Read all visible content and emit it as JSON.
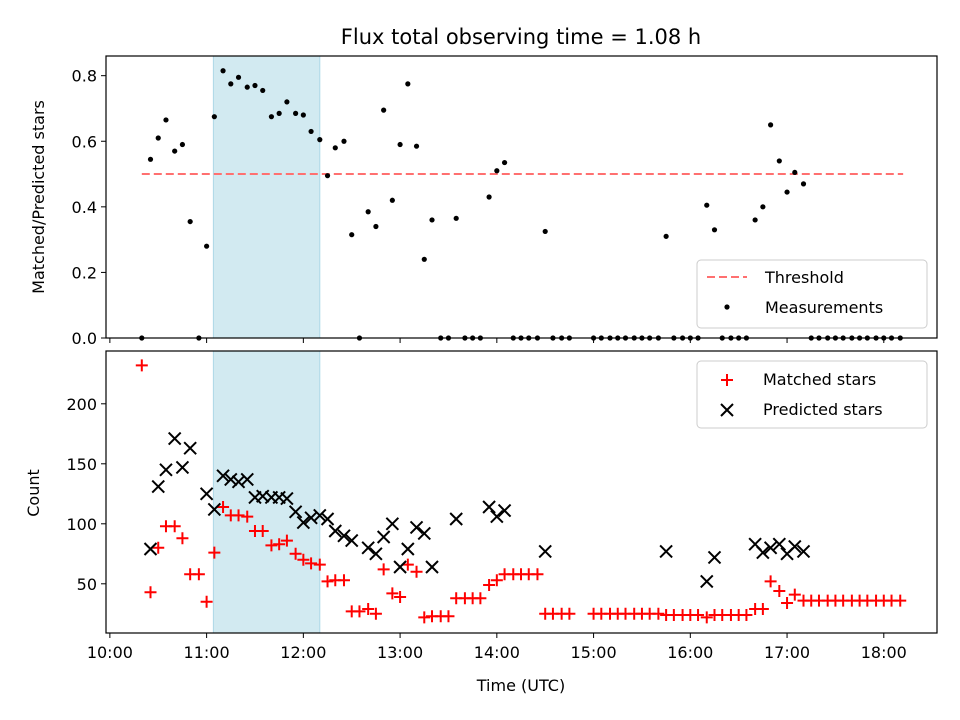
{
  "chart_data": {
    "type": "scatter",
    "title": "Flux total observing time = 1.08 h",
    "xlabel": "Time (UTC)",
    "xticks": [
      "10:00",
      "11:00",
      "12:00",
      "13:00",
      "14:00",
      "15:00",
      "16:00",
      "17:00",
      "18:00"
    ],
    "x_range_hours": [
      9.96,
      18.55
    ],
    "highlight_span_hours": [
      11.07,
      12.17
    ],
    "highlight_color": "#add8e6",
    "panels": [
      {
        "id": "ratio",
        "ylabel": "Matched/Predicted stars",
        "ylim": [
          0,
          0.86
        ],
        "yticks": [
          "0.0",
          "0.2",
          "0.4",
          "0.6",
          "0.8"
        ],
        "legend_position": "lower-right",
        "threshold": {
          "name": "Threshold",
          "value": 0.5,
          "x": [
            10.33,
            18.2
          ],
          "color": "#ff7070",
          "style": "dashed"
        },
        "series": [
          {
            "name": "Measurements",
            "color": "#000000",
            "marker": "dot",
            "x": [
              10.33,
              10.42,
              10.5,
              10.58,
              10.67,
              10.75,
              10.83,
              10.92,
              11.0,
              11.08,
              11.17,
              11.25,
              11.33,
              11.42,
              11.5,
              11.58,
              11.67,
              11.75,
              11.83,
              11.92,
              12.0,
              12.08,
              12.17,
              12.25,
              12.33,
              12.42,
              12.5,
              12.58,
              12.67,
              12.75,
              12.83,
              12.92,
              13.0,
              13.08,
              13.17,
              13.25,
              13.33,
              13.42,
              13.5,
              13.58,
              13.67,
              13.75,
              13.83,
              13.92,
              14.0,
              14.08,
              14.17,
              14.25,
              14.33,
              14.42,
              14.5,
              14.58,
              14.67,
              14.75,
              15.0,
              15.08,
              15.17,
              15.25,
              15.33,
              15.42,
              15.5,
              15.58,
              15.67,
              15.75,
              15.83,
              15.92,
              16.0,
              16.08,
              16.17,
              16.25,
              16.33,
              16.42,
              16.5,
              16.58,
              16.67,
              16.75,
              16.83,
              16.92,
              17.0,
              17.08,
              17.17,
              17.25,
              17.33,
              17.42,
              17.5,
              17.58,
              17.67,
              17.75,
              17.83,
              17.92,
              18.0,
              18.08,
              18.17
            ],
            "y": [
              0.0,
              0.545,
              0.61,
              0.665,
              0.57,
              0.59,
              0.355,
              0.0,
              0.28,
              0.675,
              0.815,
              0.775,
              0.795,
              0.765,
              0.77,
              0.755,
              0.675,
              0.685,
              0.72,
              0.685,
              0.68,
              0.63,
              0.605,
              0.495,
              0.58,
              0.6,
              0.315,
              0.0,
              0.385,
              0.34,
              0.695,
              0.42,
              0.59,
              0.775,
              0.585,
              0.24,
              0.36,
              0.0,
              0.0,
              0.365,
              0.0,
              0.0,
              0.0,
              0.43,
              0.51,
              0.535,
              0.0,
              0.0,
              0.0,
              0.0,
              0.325,
              0.0,
              0.0,
              0.0,
              0.0,
              0.0,
              0.0,
              0.0,
              0.0,
              0.0,
              0.0,
              0.0,
              0.0,
              0.31,
              0.0,
              0.0,
              0.0,
              0.0,
              0.405,
              0.33,
              0.0,
              0.0,
              0.0,
              0.0,
              0.36,
              0.4,
              0.65,
              0.54,
              0.445,
              0.505,
              0.47,
              0.0,
              0.0,
              0.0,
              0.0,
              0.0,
              0.0,
              0.0,
              0.0,
              0.0,
              0.0,
              0.0,
              0.0
            ]
          }
        ]
      },
      {
        "id": "counts",
        "ylabel": "Count",
        "ylim": [
          9,
          244
        ],
        "yticks": [
          "50",
          "100",
          "150",
          "200"
        ],
        "legend_position": "upper-right",
        "series": [
          {
            "name": "Matched stars",
            "color": "#ff0000",
            "marker": "plus",
            "x": [
              10.33,
              10.42,
              10.5,
              10.58,
              10.67,
              10.75,
              10.83,
              10.92,
              11.0,
              11.08,
              11.17,
              11.25,
              11.33,
              11.42,
              11.5,
              11.58,
              11.67,
              11.75,
              11.83,
              11.92,
              12.0,
              12.08,
              12.17,
              12.25,
              12.33,
              12.42,
              12.5,
              12.58,
              12.67,
              12.75,
              12.83,
              12.92,
              13.0,
              13.08,
              13.17,
              13.25,
              13.33,
              13.42,
              13.5,
              13.58,
              13.67,
              13.75,
              13.83,
              13.92,
              14.0,
              14.08,
              14.17,
              14.25,
              14.33,
              14.42,
              14.5,
              14.58,
              14.67,
              14.75,
              15.0,
              15.08,
              15.17,
              15.25,
              15.33,
              15.42,
              15.5,
              15.58,
              15.67,
              15.75,
              15.83,
              15.92,
              16.0,
              16.08,
              16.17,
              16.25,
              16.33,
              16.42,
              16.5,
              16.58,
              16.67,
              16.75,
              16.83,
              16.92,
              17.0,
              17.08,
              17.17,
              17.25,
              17.33,
              17.42,
              17.5,
              17.58,
              17.67,
              17.75,
              17.83,
              17.92,
              18.0,
              18.08,
              18.17
            ],
            "y": [
              232,
              43,
              80,
              98,
              98,
              88,
              58,
              58,
              35,
              76,
              114,
              107,
              107,
              106,
              94,
              94,
              82,
              83,
              86,
              75,
              70,
              67,
              66,
              52,
              53,
              53,
              27,
              27,
              29,
              25,
              62,
              42,
              39,
              66,
              60,
              22,
              23,
              23,
              23,
              38,
              38,
              38,
              38,
              49,
              53,
              58,
              58,
              58,
              58,
              58,
              25,
              25,
              25,
              25,
              25,
              25,
              25,
              25,
              25,
              25,
              25,
              25,
              25,
              24,
              24,
              24,
              24,
              24,
              22,
              24,
              24,
              24,
              24,
              24,
              29,
              29,
              52,
              44,
              34,
              41,
              36,
              36,
              36,
              36,
              36,
              36,
              36,
              36,
              36,
              36,
              36,
              36,
              36
            ]
          },
          {
            "name": "Predicted stars",
            "color": "#000000",
            "marker": "x",
            "x": [
              10.42,
              10.5,
              10.58,
              10.67,
              10.75,
              10.83,
              11.0,
              11.08,
              11.17,
              11.25,
              11.33,
              11.42,
              11.5,
              11.58,
              11.67,
              11.75,
              11.83,
              11.92,
              12.0,
              12.08,
              12.17,
              12.25,
              12.33,
              12.42,
              12.5,
              12.67,
              12.75,
              12.83,
              12.92,
              13.0,
              13.08,
              13.17,
              13.25,
              13.33,
              13.58,
              13.92,
              14.0,
              14.08,
              14.5,
              15.75,
              16.17,
              16.25,
              16.67,
              16.75,
              16.83,
              16.92,
              17.0,
              17.08,
              17.17
            ],
            "y": [
              79,
              131,
              145,
              171,
              147,
              163,
              125,
              112,
              140,
              137,
              135,
              137,
              122,
              123,
              122,
              122,
              121,
              110,
              101,
              105,
              107,
              104,
              94,
              90,
              86,
              80,
              75,
              89,
              100,
              64,
              79,
              97,
              92,
              64,
              104,
              114,
              106,
              111,
              77,
              77,
              52,
              72,
              83,
              76,
              80,
              83,
              75,
              81,
              77
            ]
          }
        ]
      }
    ]
  }
}
